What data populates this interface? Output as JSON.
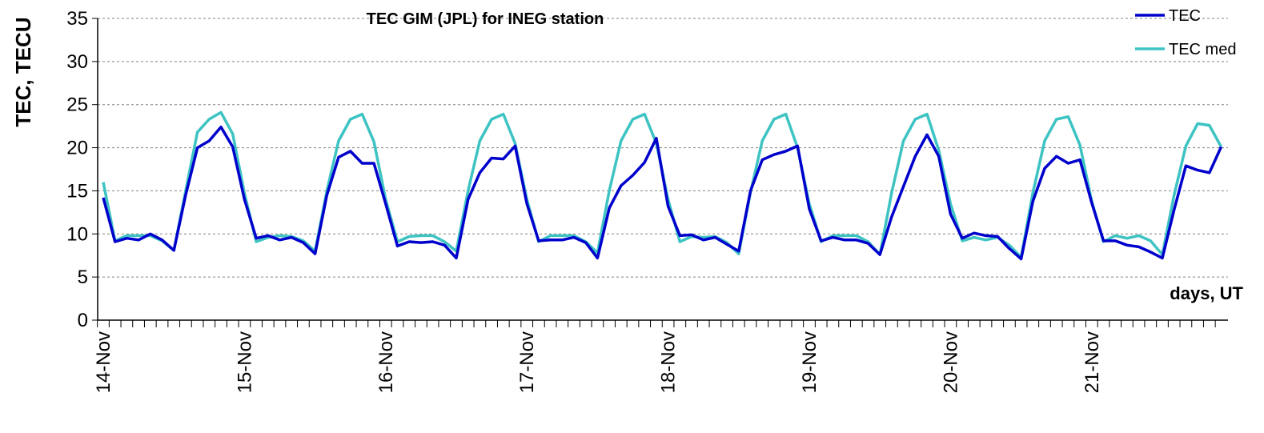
{
  "chart_data": {
    "type": "line",
    "title": "TEC GIM (JPL) for INEG station",
    "ylabel": "TEC, TECU",
    "xlabel": "days, UT",
    "ylim": [
      0,
      35
    ],
    "yticks": [
      0,
      5,
      10,
      15,
      20,
      25,
      30,
      35
    ],
    "grid": "horizontal dashed",
    "legend_position": "top-right",
    "x_tick_labels": [
      "14-Nov",
      "15-Nov",
      "16-Nov",
      "17-Nov",
      "18-Nov",
      "19-Nov",
      "20-Nov",
      "21-Nov"
    ],
    "x_start": "2013-11-14 00:00 UT",
    "x_step_hours": 2,
    "series": [
      {
        "name": "TEC",
        "color": "#0000CC",
        "values": [
          14.2,
          9.1,
          9.5,
          9.3,
          10.0,
          9.3,
          8.1,
          14.5,
          20.0,
          20.8,
          22.4,
          20.1,
          14.0,
          9.5,
          9.8,
          9.3,
          9.6,
          9.0,
          7.7,
          14.5,
          18.9,
          19.6,
          18.2,
          18.2,
          13.5,
          8.6,
          9.1,
          9.0,
          9.1,
          8.7,
          7.2,
          14.0,
          17.1,
          18.8,
          18.7,
          20.2,
          13.5,
          9.2,
          9.3,
          9.3,
          9.6,
          9.0,
          7.2,
          13.0,
          15.6,
          16.8,
          18.3,
          21.1,
          13.2,
          9.8,
          9.9,
          9.3,
          9.6,
          8.8,
          8.0,
          15.0,
          18.6,
          19.2,
          19.6,
          20.2,
          12.9,
          9.2,
          9.6,
          9.3,
          9.3,
          8.9,
          7.6,
          12.0,
          15.5,
          19.0,
          21.5,
          19.0,
          12.3,
          9.5,
          10.1,
          9.8,
          9.7,
          8.3,
          7.1,
          13.8,
          17.6,
          19.0,
          18.2,
          18.6,
          13.6,
          9.2,
          9.2,
          8.7,
          8.5,
          7.9,
          7.2,
          12.8,
          17.9,
          17.4,
          17.1,
          20.1
        ]
      },
      {
        "name": "TEC med",
        "color": "#3EC3C3",
        "values": [
          16.0,
          9.2,
          9.8,
          9.8,
          9.8,
          9.2,
          8.1,
          15.0,
          21.8,
          23.3,
          24.1,
          21.6,
          14.7,
          9.1,
          9.6,
          9.8,
          9.7,
          9.2,
          8.0,
          15.0,
          20.8,
          23.3,
          23.9,
          20.7,
          14.0,
          9.1,
          9.7,
          9.8,
          9.8,
          9.1,
          8.0,
          15.0,
          20.8,
          23.3,
          23.9,
          20.5,
          14.0,
          9.1,
          9.8,
          9.8,
          9.8,
          9.1,
          7.8,
          15.0,
          20.8,
          23.3,
          23.9,
          20.5,
          14.0,
          9.1,
          9.7,
          9.6,
          9.7,
          9.0,
          7.7,
          14.8,
          20.8,
          23.3,
          23.9,
          20.0,
          13.5,
          9.1,
          9.8,
          9.8,
          9.8,
          9.1,
          7.6,
          14.8,
          20.8,
          23.3,
          23.9,
          19.7,
          13.5,
          9.2,
          9.6,
          9.3,
          9.6,
          8.7,
          7.3,
          14.8,
          20.8,
          23.3,
          23.6,
          20.3,
          13.8,
          9.1,
          9.8,
          9.5,
          9.8,
          9.2,
          7.6,
          14.5,
          20.2,
          22.8,
          22.6,
          20.1
        ]
      }
    ]
  }
}
